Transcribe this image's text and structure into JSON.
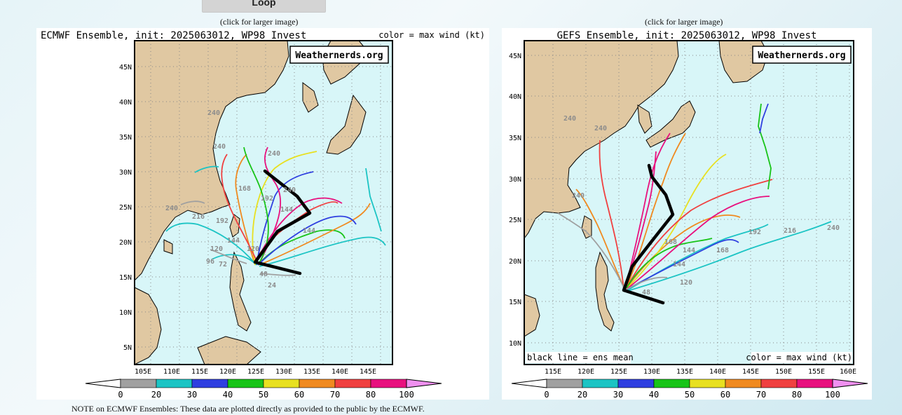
{
  "loop_button": {
    "label": "Loop"
  },
  "left_panel": {
    "caption": "(click for larger image)",
    "title": "ECMWF Ensemble, init: 2025063012, WP98 Invest",
    "color_note": "color = max wind (kt)",
    "brand": "Weathernerds.org",
    "lat_labels": [
      "45N",
      "40N",
      "35N",
      "30N",
      "25N",
      "20N",
      "15N",
      "10N",
      "5N"
    ],
    "lon_labels": [
      "105E",
      "110E",
      "115E",
      "120E",
      "125E",
      "130E",
      "135E",
      "140E",
      "145E"
    ],
    "hour_labels": [
      "240",
      "240",
      "240",
      "240",
      "216",
      "192",
      "168",
      "120",
      "96",
      "72",
      "144",
      "144",
      "144",
      "24",
      "192",
      "240",
      "120",
      "48"
    ]
  },
  "right_panel": {
    "caption": "(click for larger image)",
    "title": "GEFS Ensemble, init: 2025063012, WP98 Invest",
    "color_note": "color = max wind (kt)",
    "black_line_note": "black line = ens mean",
    "brand": "Weathernerds.org",
    "lat_labels": [
      "45N",
      "40N",
      "35N",
      "30N",
      "25N",
      "20N",
      "15N",
      "10N"
    ],
    "lon_labels": [
      "115E",
      "120E",
      "125E",
      "130E",
      "135E",
      "140E",
      "145E",
      "150E",
      "155E",
      "160E"
    ],
    "hour_labels": [
      "240",
      "240",
      "240",
      "240",
      "216",
      "192",
      "168",
      "144",
      "120",
      "144",
      "168",
      "48"
    ]
  },
  "colorbar": {
    "ticks": [
      "0",
      "20",
      "30",
      "40",
      "50",
      "60",
      "70",
      "80",
      "100"
    ],
    "colors": [
      "#a0a0a0",
      "#1cc4c4",
      "#2f3fe0",
      "#18c418",
      "#e8e020",
      "#f08a20",
      "#f04040",
      "#e8107e"
    ],
    "end_left": "#ffffff",
    "end_right": "#f090f0"
  },
  "footer_note": "NOTE on ECMWF Ensembles: These data are plotted directly as provided to the public by the ECMWF."
}
